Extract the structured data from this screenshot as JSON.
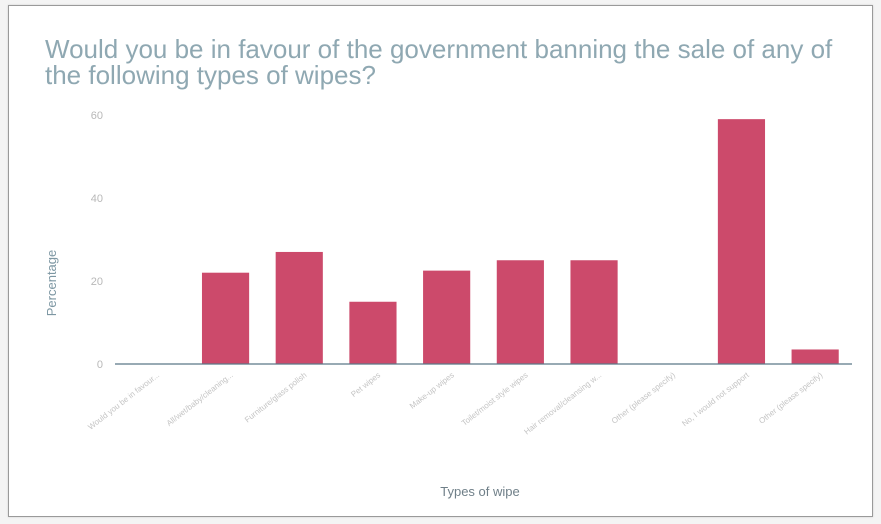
{
  "chart_data": {
    "type": "bar",
    "title": "Would you be in favour of the government banning the sale of any of the following types of wipes?",
    "xlabel": "Types of wipe",
    "ylabel": "Percentage",
    "ylim": [
      0,
      60
    ],
    "yticks": [
      0,
      20,
      40,
      60
    ],
    "grid": false,
    "legend": "none",
    "bar_color": "#cc4a6b",
    "categories": [
      "Would you be in favour...",
      "All/wet/baby/cleaning...",
      "Furniture/glass polish",
      "Pet wipes",
      "Make-up wipes",
      "Toilet/moist style wipes",
      "Hair removal/cleansing w...",
      "Other (please specify)",
      "No, I would not support",
      "Other (please specify)"
    ],
    "values": [
      0,
      22,
      27,
      15,
      22.5,
      25,
      25,
      0,
      59,
      3.5
    ]
  }
}
